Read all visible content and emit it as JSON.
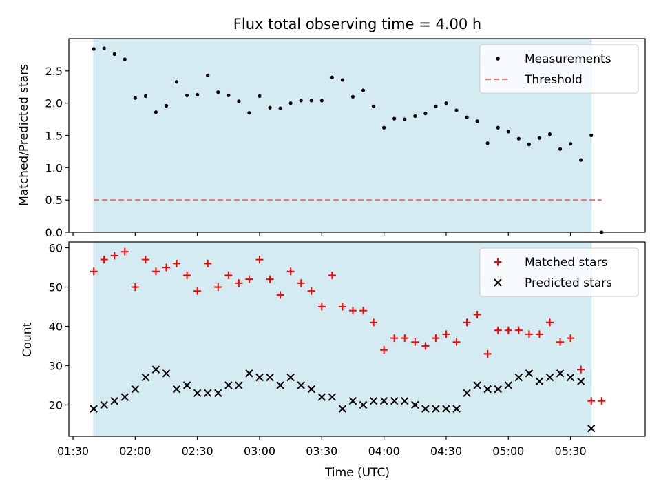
{
  "chart_data": [
    {
      "type": "scatter",
      "title": "Flux total observing time = 4.00 h",
      "xlabel": "",
      "ylabel": "Matched/Predicted stars",
      "ylim": [
        0,
        3.0
      ],
      "yticks": [
        "0.0",
        "0.5",
        "1.0",
        "1.5",
        "2.0",
        "2.5"
      ],
      "xlim": [
        "01:28",
        "06:06"
      ],
      "x_ticks_minutes": [
        90,
        120,
        150,
        180,
        210,
        240,
        270,
        300,
        330
      ],
      "observing_window": [
        "01:40",
        "05:40"
      ],
      "observing_window_color": "#d4ebf2",
      "legend_position": "top-right",
      "threshold": {
        "name": "Threshold",
        "value": 0.5,
        "x_range": [
          "01:40",
          "05:45"
        ],
        "color": "#f07171"
      },
      "series": [
        {
          "name": "Measurements",
          "color": "#000000",
          "x": [
            "01:40",
            "01:45",
            "01:50",
            "01:55",
            "02:00",
            "02:05",
            "02:10",
            "02:15",
            "02:20",
            "02:25",
            "02:30",
            "02:35",
            "02:40",
            "02:45",
            "02:50",
            "02:55",
            "03:00",
            "03:05",
            "03:10",
            "03:15",
            "03:20",
            "03:25",
            "03:30",
            "03:35",
            "03:40",
            "03:45",
            "03:50",
            "03:55",
            "04:00",
            "04:05",
            "04:10",
            "04:15",
            "04:20",
            "04:25",
            "04:30",
            "04:35",
            "04:40",
            "04:45",
            "04:50",
            "04:55",
            "05:00",
            "05:05",
            "05:10",
            "05:15",
            "05:20",
            "05:25",
            "05:30",
            "05:35",
            "05:40",
            "05:45"
          ],
          "values": [
            2.84,
            2.85,
            2.76,
            2.68,
            2.08,
            2.11,
            1.86,
            1.96,
            2.33,
            2.12,
            2.13,
            2.43,
            2.17,
            2.12,
            2.03,
            1.85,
            2.11,
            1.93,
            1.92,
            2.0,
            2.04,
            2.04,
            2.04,
            2.4,
            2.36,
            2.1,
            2.2,
            1.95,
            1.62,
            1.76,
            1.75,
            1.8,
            1.84,
            1.95,
            2.0,
            1.89,
            1.78,
            1.72,
            1.38,
            1.62,
            1.56,
            1.45,
            1.36,
            1.46,
            1.52,
            1.29,
            1.37,
            1.12,
            1.5,
            0.0
          ]
        }
      ]
    },
    {
      "type": "scatter",
      "title": "",
      "xlabel": "Time (UTC)",
      "ylabel": "Count",
      "ylim": [
        12,
        61.5
      ],
      "yticks": [
        "20",
        "30",
        "40",
        "50",
        "60"
      ],
      "xticks": [
        "01:30",
        "02:00",
        "02:30",
        "03:00",
        "03:30",
        "04:00",
        "04:30",
        "05:00",
        "05:30"
      ],
      "x_ticks_minutes": [
        90,
        120,
        150,
        180,
        210,
        240,
        270,
        300,
        330
      ],
      "xlim": [
        "01:28",
        "06:06"
      ],
      "observing_window": [
        "01:40",
        "05:40"
      ],
      "observing_window_color": "#d4ebf2",
      "legend_position": "top-right",
      "series": [
        {
          "name": "Matched stars",
          "marker": "+",
          "color": "#ff0000",
          "x": [
            "01:40",
            "01:45",
            "01:50",
            "01:55",
            "02:00",
            "02:05",
            "02:10",
            "02:15",
            "02:20",
            "02:25",
            "02:30",
            "02:35",
            "02:40",
            "02:45",
            "02:50",
            "02:55",
            "03:00",
            "03:05",
            "03:10",
            "03:15",
            "03:20",
            "03:25",
            "03:30",
            "03:35",
            "03:40",
            "03:45",
            "03:50",
            "03:55",
            "04:00",
            "04:05",
            "04:10",
            "04:15",
            "04:20",
            "04:25",
            "04:30",
            "04:35",
            "04:40",
            "04:45",
            "04:50",
            "04:55",
            "05:00",
            "05:05",
            "05:10",
            "05:15",
            "05:20",
            "05:25",
            "05:30",
            "05:35",
            "05:40",
            "05:45"
          ],
          "values": [
            54,
            57,
            58,
            59,
            50,
            57,
            54,
            55,
            56,
            53,
            49,
            56,
            50,
            53,
            51,
            52,
            57,
            52,
            48,
            54,
            51,
            49,
            45,
            53,
            45,
            44,
            44,
            41,
            34,
            37,
            37,
            36,
            35,
            37,
            38,
            36,
            41,
            43,
            33,
            39,
            39,
            39,
            38,
            38,
            41,
            36,
            37,
            29,
            21,
            21
          ]
        },
        {
          "name": "Predicted stars",
          "marker": "x",
          "color": "#000000",
          "x": [
            "01:40",
            "01:45",
            "01:50",
            "01:55",
            "02:00",
            "02:05",
            "02:10",
            "02:15",
            "02:20",
            "02:25",
            "02:30",
            "02:35",
            "02:40",
            "02:45",
            "02:50",
            "02:55",
            "03:00",
            "03:05",
            "03:10",
            "03:15",
            "03:20",
            "03:25",
            "03:30",
            "03:35",
            "03:40",
            "03:45",
            "03:50",
            "03:55",
            "04:00",
            "04:05",
            "04:10",
            "04:15",
            "04:20",
            "04:25",
            "04:30",
            "04:35",
            "04:40",
            "04:45",
            "04:50",
            "04:55",
            "05:00",
            "05:05",
            "05:10",
            "05:15",
            "05:20",
            "05:25",
            "05:30",
            "05:35",
            "05:40"
          ],
          "values": [
            19,
            20,
            21,
            22,
            24,
            27,
            29,
            28,
            24,
            25,
            23,
            23,
            23,
            25,
            25,
            28,
            27,
            27,
            25,
            27,
            25,
            24,
            22,
            22,
            19,
            21,
            20,
            21,
            21,
            21,
            21,
            20,
            19,
            19,
            19,
            19,
            23,
            25,
            24,
            24,
            25,
            27,
            28,
            26,
            27,
            28,
            27,
            26,
            14
          ]
        }
      ]
    }
  ]
}
